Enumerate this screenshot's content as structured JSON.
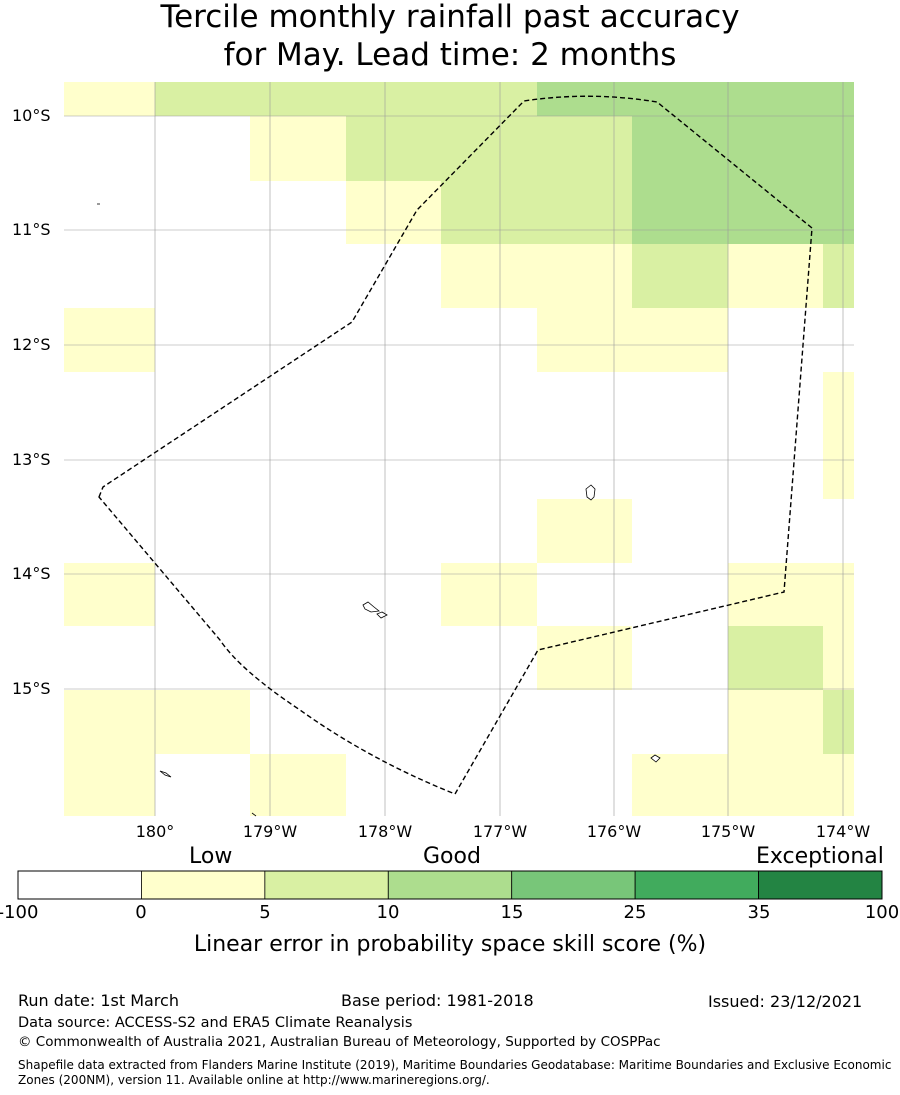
{
  "title": {
    "line1": "Tercile monthly rainfall past accuracy",
    "line2": "for May. Lead time: 2 months"
  },
  "map": {
    "lat_labels": [
      "10°S",
      "11°S",
      "12°S",
      "13°S",
      "14°S",
      "15°S"
    ],
    "lon_labels": [
      "180°",
      "179°W",
      "178°W",
      "177°W",
      "176°W",
      "175°W",
      "174°W"
    ],
    "grid_cells": [
      {
        "lon": -180.5,
        "lat": -10,
        "skill": "0-5"
      },
      {
        "lon": -179.5,
        "lat": -10,
        "skill": "5-10"
      },
      {
        "lon": -178.5,
        "lat": -10,
        "skill": "5-10"
      },
      {
        "lon": -177.5,
        "lat": -10,
        "skill": "5-10"
      },
      {
        "lon": -176.5,
        "lat": -10,
        "skill": "10-15"
      },
      {
        "lon": -175.5,
        "lat": -10,
        "skill": "10-15"
      },
      {
        "lon": -174.5,
        "lat": -10,
        "skill": "10-15"
      }
    ],
    "colors": {
      "water": "#ffffff",
      "gridline": "#999999",
      "boundary": "#000000"
    }
  },
  "colorbar": {
    "categories": {
      "low": "Low",
      "good": "Good",
      "exceptional": "Exceptional"
    },
    "ticks": [
      "-100",
      "0",
      "5",
      "10",
      "15",
      "25",
      "35",
      "100"
    ],
    "bins": [
      {
        "range": "-100 to 0",
        "color": "#ffffff"
      },
      {
        "range": "0 to 5",
        "color": "#ffffcc"
      },
      {
        "range": "5 to 10",
        "color": "#d9f0a3"
      },
      {
        "range": "10 to 15",
        "color": "#addd8e"
      },
      {
        "range": "15 to 25",
        "color": "#78c679"
      },
      {
        "range": "25 to 35",
        "color": "#41ab5d"
      },
      {
        "range": "35 to 100",
        "color": "#238443"
      }
    ],
    "label": "Linear error in probability space skill score (%)"
  },
  "footer": {
    "run_date": "Run date: 1st March",
    "base_period": "Base period: 1981-2018",
    "issued": "Issued: 23/12/2021",
    "data_source": "Data source: ACCESS-S2 and ERA5 Climate Reanalysis",
    "copyright": "© Commonwealth of Australia 2021, Australian Bureau of Meteorology, Supported by COSPPac",
    "shapefile": "Shapefile data extracted from Flanders Marine Institute (2019), Maritime Boundaries Geodatabase: Maritime Boundaries and Exclusive Economic Zones (200NM), version 11. Available online at http://www.marineregions.org/."
  }
}
